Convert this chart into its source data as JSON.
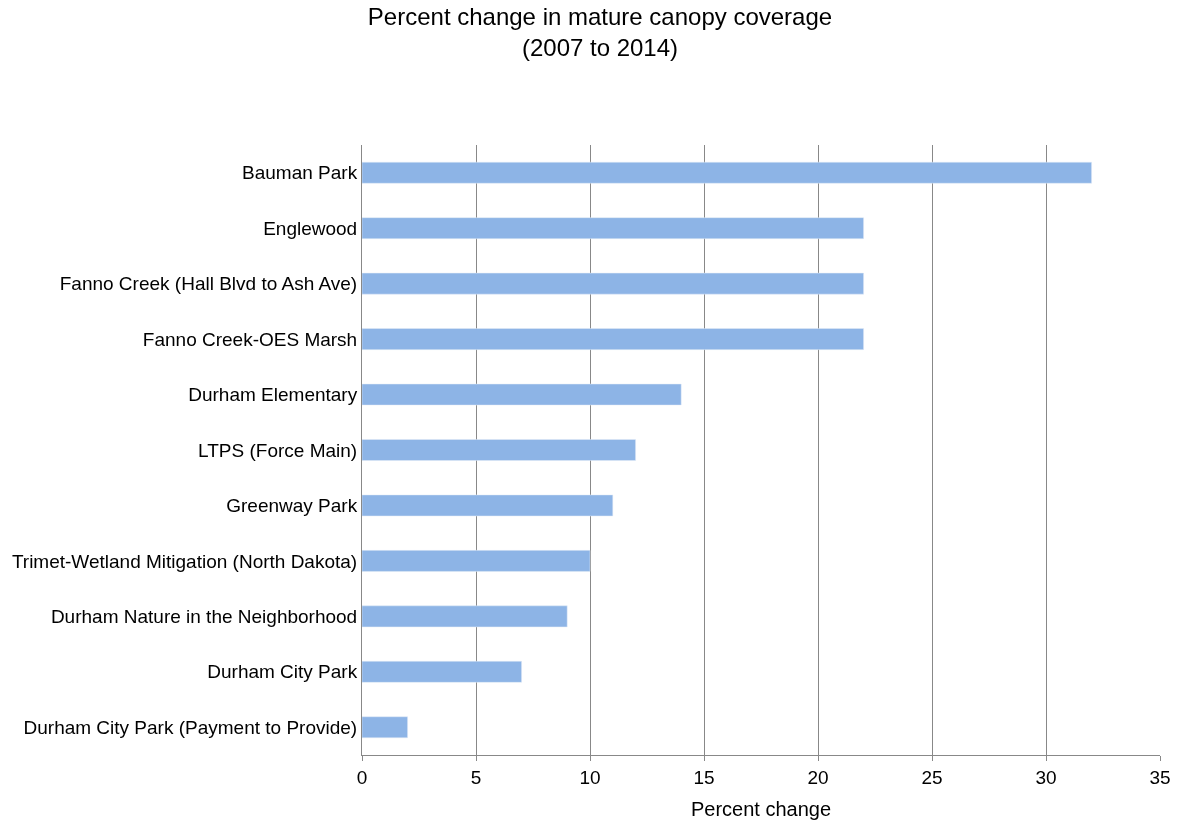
{
  "chart_data": {
    "type": "bar",
    "orientation": "horizontal",
    "title": "Percent change in mature canopy coverage\n(2007 to 2014)",
    "xlabel": "Percent change",
    "categories": [
      "Bauman Park",
      "Englewood",
      "Fanno Creek (Hall Blvd to Ash Ave)",
      "Fanno Creek-OES Marsh",
      "Durham Elementary",
      "LTPS (Force Main)",
      "Greenway Park",
      "Trimet-Wetland Mitigation (North Dakota)",
      "Durham Nature in the Neighborhood",
      "Durham City Park",
      "Durham City Park (Payment to Provide)"
    ],
    "values": [
      32,
      22,
      22,
      22,
      14,
      12,
      11,
      10,
      9,
      7,
      2
    ],
    "color": "#8db4e6",
    "xlim": [
      0,
      35
    ],
    "xticks": [
      0,
      5,
      10,
      15,
      20,
      25,
      30,
      35
    ],
    "grid": "x"
  }
}
